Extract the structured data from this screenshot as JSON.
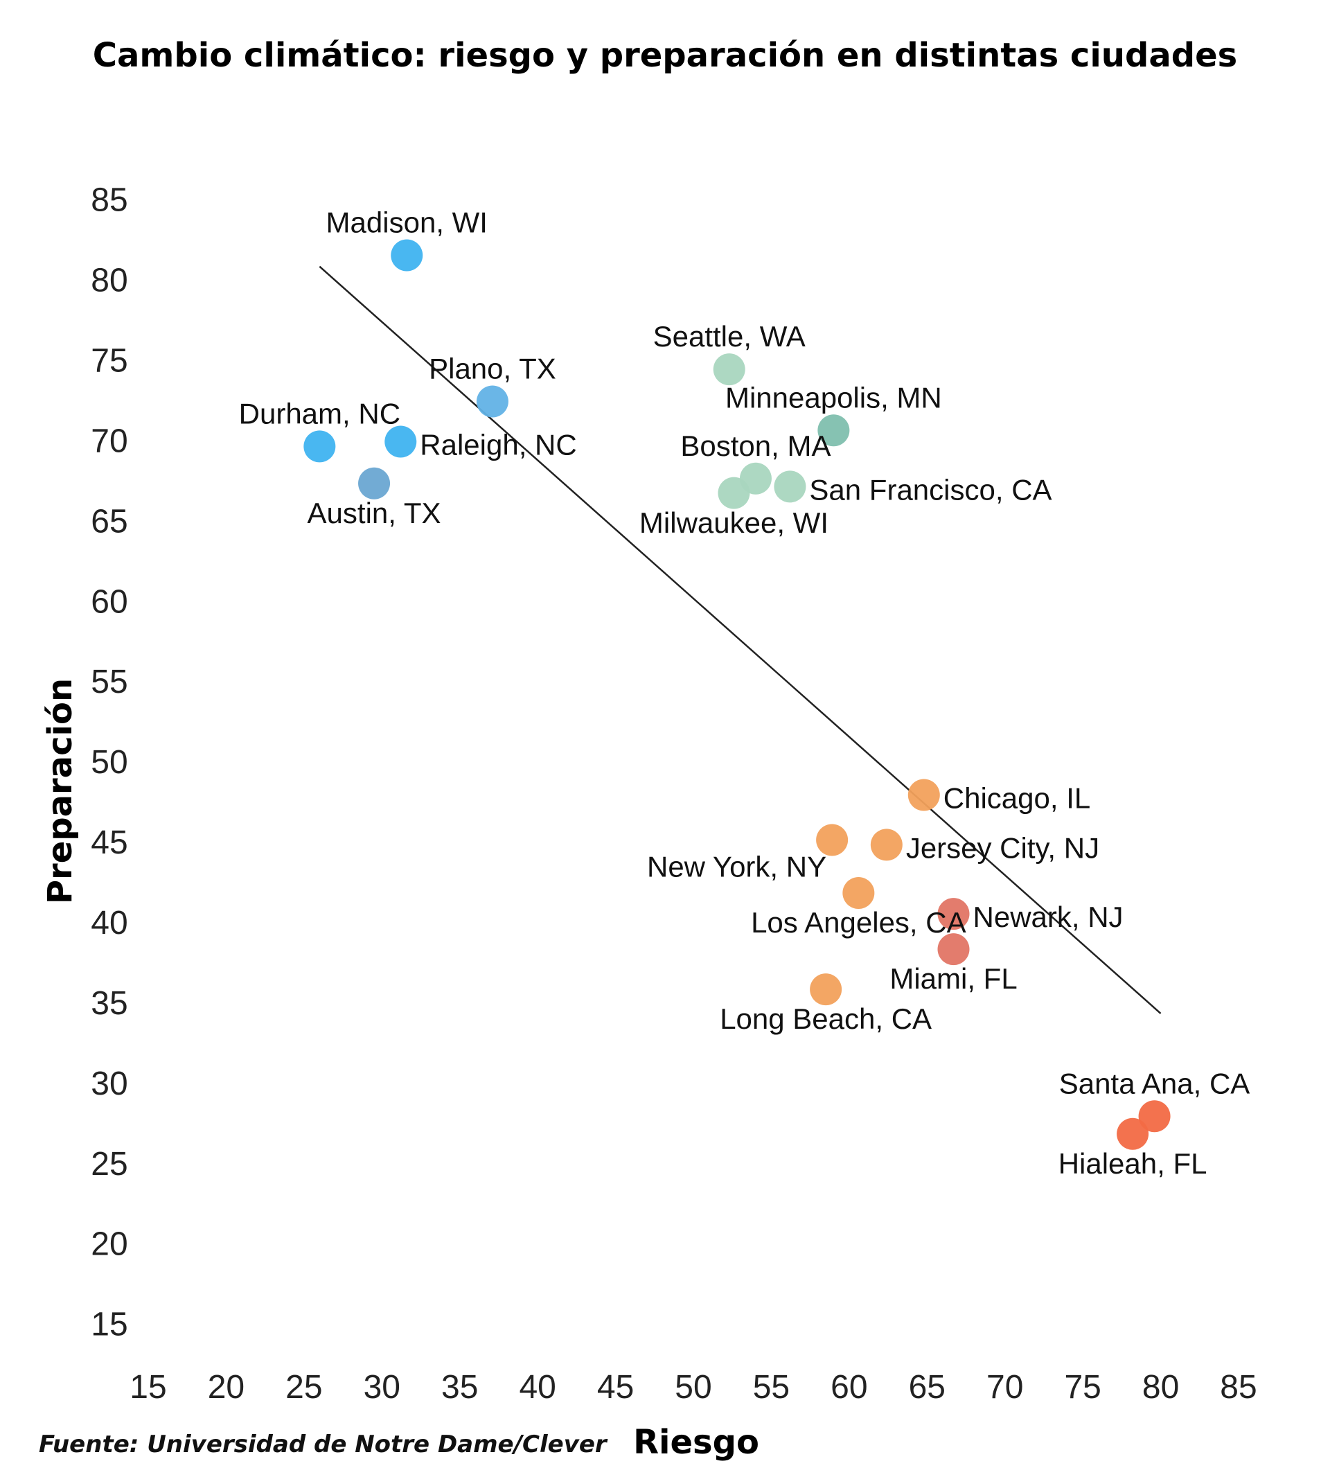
{
  "chart_data": {
    "type": "scatter",
    "title": "Cambio climático: riesgo y preparación en distintas ciudades",
    "xlabel": "Riesgo",
    "ylabel": "Preparación",
    "source": "Fuente: Universidad de Notre Dame/Clever",
    "xlim": [
      15,
      85
    ],
    "ylim": [
      15,
      85
    ],
    "xticks": [
      15,
      20,
      25,
      30,
      35,
      40,
      45,
      50,
      55,
      60,
      65,
      70,
      75,
      80,
      85
    ],
    "yticks": [
      15,
      20,
      25,
      30,
      35,
      40,
      45,
      50,
      55,
      60,
      65,
      70,
      75,
      80,
      85
    ],
    "grid": false,
    "trendline": {
      "from": [
        26,
        81
      ],
      "to": [
        80,
        34.5
      ],
      "color": "#222222"
    },
    "points": [
      {
        "city": "Madison, WI",
        "x": 31.6,
        "y": 81.7,
        "color": "#3fb3f0",
        "label_anchor": "above"
      },
      {
        "city": "Plano, TX",
        "x": 37.1,
        "y": 72.6,
        "color": "#62b2e6",
        "label_anchor": "above"
      },
      {
        "city": "Durham, NC",
        "x": 26.0,
        "y": 69.8,
        "color": "#3fb3f0",
        "label_anchor": "above"
      },
      {
        "city": "Raleigh, NC",
        "x": 31.2,
        "y": 70.1,
        "color": "#3fb3f0",
        "label_anchor": "right"
      },
      {
        "city": "Austin, TX",
        "x": 29.5,
        "y": 67.5,
        "color": "#6aa6d2",
        "label_anchor": "below"
      },
      {
        "city": "Seattle, WA",
        "x": 52.3,
        "y": 74.6,
        "color": "#a9d6bf",
        "label_anchor": "above"
      },
      {
        "city": "Minneapolis, MN",
        "x": 59.0,
        "y": 70.8,
        "color": "#7fbfae",
        "label_anchor": "above"
      },
      {
        "city": "Boston, MA",
        "x": 54.0,
        "y": 67.8,
        "color": "#a9d6bf",
        "label_anchor": "above"
      },
      {
        "city": "Milwaukee, WI",
        "x": 52.6,
        "y": 66.9,
        "color": "#a9d6bf",
        "label_anchor": "below"
      },
      {
        "city": "San Francisco, CA",
        "x": 56.2,
        "y": 67.3,
        "color": "#a9d6bf",
        "label_anchor": "right"
      },
      {
        "city": "Chicago, IL",
        "x": 64.8,
        "y": 48.1,
        "color": "#f2a15c",
        "label_anchor": "right"
      },
      {
        "city": "New York, NY",
        "x": 58.9,
        "y": 45.3,
        "color": "#f2a15c",
        "label_anchor": "left"
      },
      {
        "city": "Jersey City, NJ",
        "x": 62.4,
        "y": 45.0,
        "color": "#f2a15c",
        "label_anchor": "right"
      },
      {
        "city": "Los Angeles, CA",
        "x": 60.6,
        "y": 42.0,
        "color": "#f2a15c",
        "label_anchor": "below"
      },
      {
        "city": "Newark, NJ",
        "x": 66.7,
        "y": 40.7,
        "color": "#e27565",
        "label_anchor": "right"
      },
      {
        "city": "Miami, FL",
        "x": 66.7,
        "y": 38.5,
        "color": "#e27565",
        "label_anchor": "below"
      },
      {
        "city": "Long Beach, CA",
        "x": 58.5,
        "y": 36.0,
        "color": "#f2a15c",
        "label_anchor": "below"
      },
      {
        "city": "Santa Ana, CA",
        "x": 79.6,
        "y": 28.1,
        "color": "#f26a45",
        "label_anchor": "above"
      },
      {
        "city": "Hialeah, FL",
        "x": 78.2,
        "y": 27.0,
        "color": "#f26a45",
        "label_anchor": "below"
      }
    ]
  }
}
